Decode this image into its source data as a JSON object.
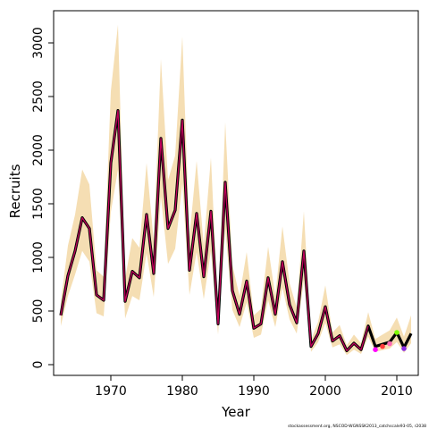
{
  "chart_data": {
    "type": "line",
    "title": "",
    "xlabel": "Year",
    "ylabel": "Recruits",
    "xlim": [
      1962,
      2013
    ],
    "ylim": [
      -100,
      3300
    ],
    "xticks": [
      1970,
      1980,
      1990,
      2000,
      2010
    ],
    "yticks": [
      0,
      500,
      1000,
      1500,
      2000,
      2500,
      3000
    ],
    "grid": false,
    "legend": "none",
    "colors": {
      "band": "#f5deb3",
      "main_line": "#000000",
      "overlay_line": "#c0005a",
      "retro_2007": "#ff00ff",
      "retro_2008": "#ff3b3b",
      "retro_2009": "#ff69b4",
      "retro_2010": "#7cfc00",
      "retro_2011": "#8a2be2"
    },
    "x": [
      1963,
      1964,
      1965,
      1966,
      1967,
      1968,
      1969,
      1970,
      1971,
      1972,
      1973,
      1974,
      1975,
      1976,
      1977,
      1978,
      1979,
      1980,
      1981,
      1982,
      1983,
      1984,
      1985,
      1986,
      1987,
      1988,
      1989,
      1990,
      1991,
      1992,
      1993,
      1994,
      1995,
      1996,
      1997,
      1998,
      1999,
      2000,
      2001,
      2002,
      2003,
      2004,
      2005,
      2006,
      2007,
      2008,
      2009,
      2010,
      2011,
      2012
    ],
    "series": [
      {
        "values": [
          460,
          830,
          1060,
          1370,
          1270,
          650,
          600,
          1880,
          2370,
          590,
          870,
          810,
          1400,
          850,
          2110,
          1270,
          1440,
          2280,
          880,
          1410,
          820,
          1430,
          380,
          1700,
          690,
          470,
          780,
          340,
          380,
          810,
          470,
          960,
          560,
          390,
          1060,
          170,
          290,
          540,
          220,
          270,
          130,
          200,
          140,
          360,
          170,
          190,
          210,
          300,
          160,
          290
        ],
        "lower": [
          360,
          640,
          840,
          1060,
          960,
          480,
          450,
          1420,
          1820,
          430,
          640,
          600,
          1040,
          630,
          1570,
          940,
          1080,
          1690,
          650,
          1050,
          610,
          1060,
          280,
          1270,
          510,
          350,
          580,
          250,
          280,
          600,
          350,
          720,
          420,
          290,
          790,
          120,
          210,
          390,
          160,
          190,
          90,
          140,
          100,
          260,
          120,
          135,
          150,
          210,
          110,
          200
        ],
        "upper": [
          580,
          1110,
          1400,
          1820,
          1680,
          880,
          820,
          2550,
          3170,
          800,
          1180,
          1090,
          1880,
          1150,
          2850,
          1720,
          1950,
          3060,
          1190,
          1900,
          1110,
          1930,
          520,
          2260,
          930,
          640,
          1050,
          460,
          520,
          1100,
          640,
          1290,
          760,
          530,
          1430,
          230,
          400,
          740,
          300,
          370,
          180,
          280,
          200,
          490,
          240,
          280,
          320,
          440,
          260,
          460
        ]
      }
    ],
    "retrospective_points": [
      {
        "year": 2007,
        "value": 140,
        "color_key": "retro_2007"
      },
      {
        "year": 2008,
        "value": 170,
        "color_key": "retro_2008"
      },
      {
        "year": 2009,
        "value": 195,
        "color_key": "retro_2009"
      },
      {
        "year": 2010,
        "value": 300,
        "color_key": "retro_2010"
      },
      {
        "year": 2011,
        "value": 150,
        "color_key": "retro_2011"
      }
    ]
  },
  "footnote": "stockassessment.org, NSCOD-WGNSSK2013_catchscale93-05, r2038"
}
